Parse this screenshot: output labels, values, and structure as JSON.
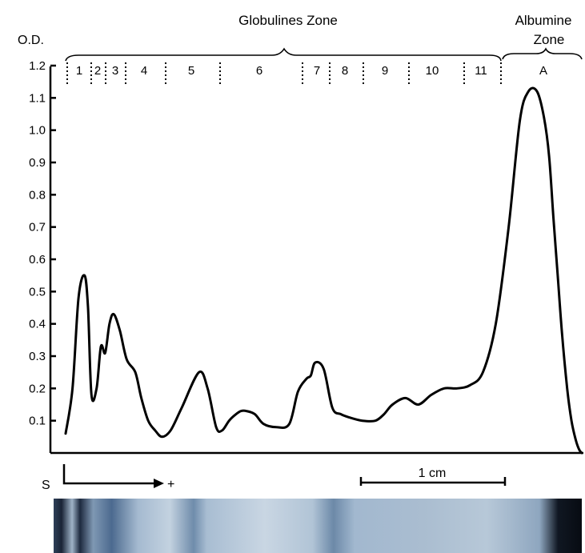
{
  "chart_data": {
    "type": "line",
    "ylabel": "O.D.",
    "xlabel": "",
    "ylim": [
      0,
      1.2
    ],
    "y_ticks": [
      "0.1",
      "0.2",
      "0.3",
      "0.4",
      "0.5",
      "0.6",
      "0.7",
      "0.8",
      "0.9",
      "1.0",
      "1.1",
      "1.2"
    ],
    "zones": {
      "globulines": "Globulines Zone",
      "albumine": [
        "Albumine",
        "Zone"
      ]
    },
    "fractions": [
      "1",
      "2",
      "3",
      "4",
      "5",
      "6",
      "7",
      "8",
      "9",
      "10",
      "11",
      "A"
    ],
    "origin_label": "S",
    "direction_label": "+",
    "scale_bar_label": "1 cm",
    "series": [
      {
        "x": [
          0.0,
          0.08,
          0.15,
          0.22,
          0.26,
          0.3,
          0.36,
          0.41,
          0.46,
          0.51,
          0.56,
          0.63,
          0.71,
          0.81,
          0.88,
          0.96,
          1.04,
          1.12,
          1.22,
          1.35,
          1.55,
          1.65,
          1.75,
          1.82,
          1.9,
          1.98,
          2.04,
          2.1,
          2.2,
          2.3,
          2.45,
          2.6,
          2.7,
          2.8,
          2.85,
          2.9,
          3.0,
          3.1,
          3.2,
          3.3,
          3.45,
          3.6,
          3.7,
          3.8,
          3.95,
          4.1,
          4.25,
          4.4,
          4.55,
          4.7,
          4.85,
          5.0,
          5.15,
          5.28,
          5.38,
          5.48,
          5.56,
          5.62,
          5.67,
          5.72,
          5.77,
          5.83,
          5.88,
          5.93,
          5.97,
          6.0
        ],
        "values": [
          0.06,
          0.2,
          0.48,
          0.55,
          0.45,
          0.18,
          0.2,
          0.33,
          0.31,
          0.4,
          0.43,
          0.38,
          0.29,
          0.25,
          0.17,
          0.1,
          0.07,
          0.05,
          0.07,
          0.14,
          0.25,
          0.2,
          0.08,
          0.07,
          0.1,
          0.12,
          0.13,
          0.13,
          0.12,
          0.09,
          0.08,
          0.09,
          0.19,
          0.23,
          0.24,
          0.28,
          0.26,
          0.14,
          0.12,
          0.11,
          0.1,
          0.1,
          0.12,
          0.15,
          0.17,
          0.15,
          0.18,
          0.2,
          0.2,
          0.21,
          0.25,
          0.4,
          0.7,
          1.03,
          1.12,
          1.12,
          1.04,
          0.92,
          0.73,
          0.55,
          0.37,
          0.2,
          0.1,
          0.04,
          0.01,
          0.0
        ]
      }
    ]
  }
}
